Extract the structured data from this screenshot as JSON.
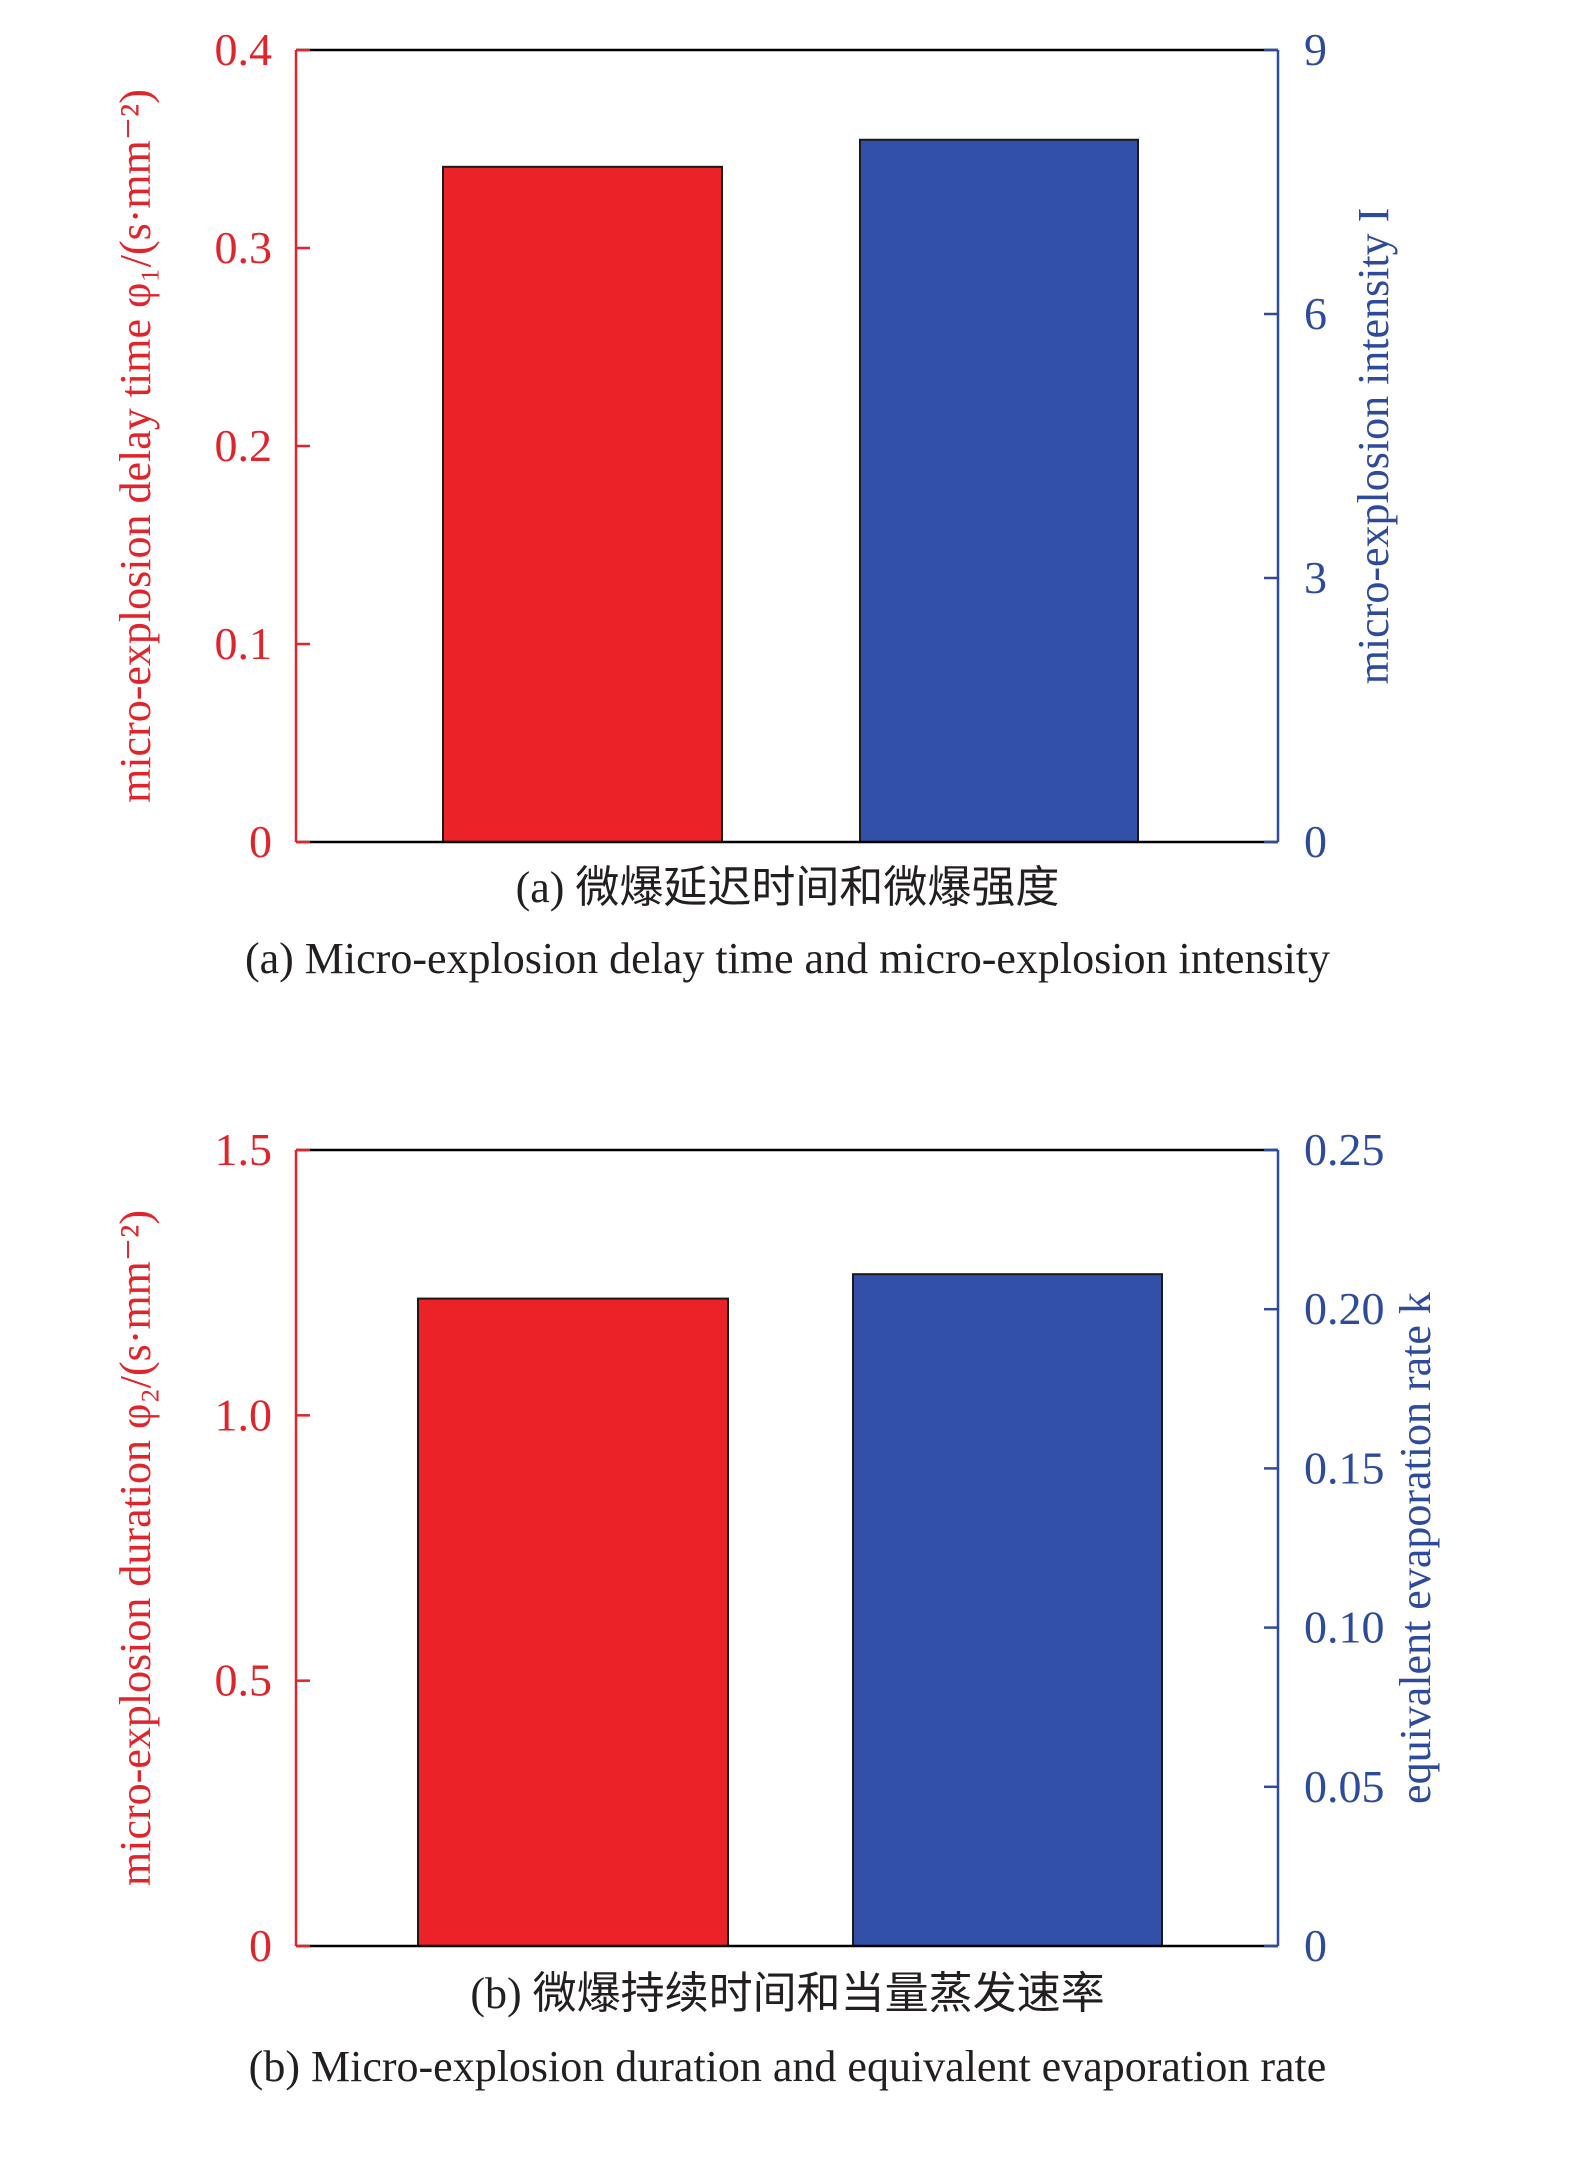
{
  "colors": {
    "left_axis": "#e0242b",
    "right_axis": "#2e4a9a",
    "bar_red": "#ec2229",
    "bar_blue": "#3350a8",
    "frame": "#000000",
    "caption": "#231f20"
  },
  "chart_data": [
    {
      "type": "bar",
      "subplot": "a",
      "caption_cn": "(a) 微爆延迟时间和微爆强度",
      "caption_en": "(a) Micro-explosion delay time and micro-explosion intensity",
      "ylabel_left": "micro-explosion delay time φ₁/(s·mm⁻²)",
      "ylabel_right": "micro-explosion intensity I",
      "ylim_left": [
        0,
        0.4
      ],
      "ylim_right": [
        0,
        9
      ],
      "ticks_left": [
        "0",
        "0.1",
        "0.2",
        "0.3",
        "0.4"
      ],
      "ticks_left_values": [
        0,
        0.1,
        0.2,
        0.3,
        0.4
      ],
      "ticks_right": [
        "0",
        "3",
        "6",
        "9"
      ],
      "ticks_right_values": [
        0,
        3,
        6,
        9
      ],
      "bars": [
        {
          "axis": "left",
          "value": 0.341,
          "color": "#ec2229"
        },
        {
          "axis": "right",
          "value": 7.98,
          "color": "#3350a8"
        }
      ],
      "grid": false
    },
    {
      "type": "bar",
      "subplot": "b",
      "caption_cn": "(b) 微爆持续时间和当量蒸发速率",
      "caption_en": "(b) Micro-explosion duration and equivalent evaporation rate",
      "ylabel_left": "micro-explosion duration φ₂/(s·mm⁻²)",
      "ylabel_right": "equivalent evaporation rate k",
      "ylim_left": [
        0,
        1.5
      ],
      "ylim_right": [
        0,
        0.25
      ],
      "ticks_left": [
        "0",
        "0.5",
        "1.0",
        "1.5"
      ],
      "ticks_left_values": [
        0,
        0.5,
        1.0,
        1.5
      ],
      "ticks_right": [
        "0",
        "0.05",
        "0.10",
        "0.15",
        "0.20",
        "0.25"
      ],
      "ticks_right_values": [
        0,
        0.05,
        0.1,
        0.15,
        0.2,
        0.25
      ],
      "bars": [
        {
          "axis": "left",
          "value": 1.22,
          "color": "#ec2229"
        },
        {
          "axis": "right",
          "value": 0.211,
          "color": "#3350a8"
        }
      ],
      "grid": false
    }
  ]
}
